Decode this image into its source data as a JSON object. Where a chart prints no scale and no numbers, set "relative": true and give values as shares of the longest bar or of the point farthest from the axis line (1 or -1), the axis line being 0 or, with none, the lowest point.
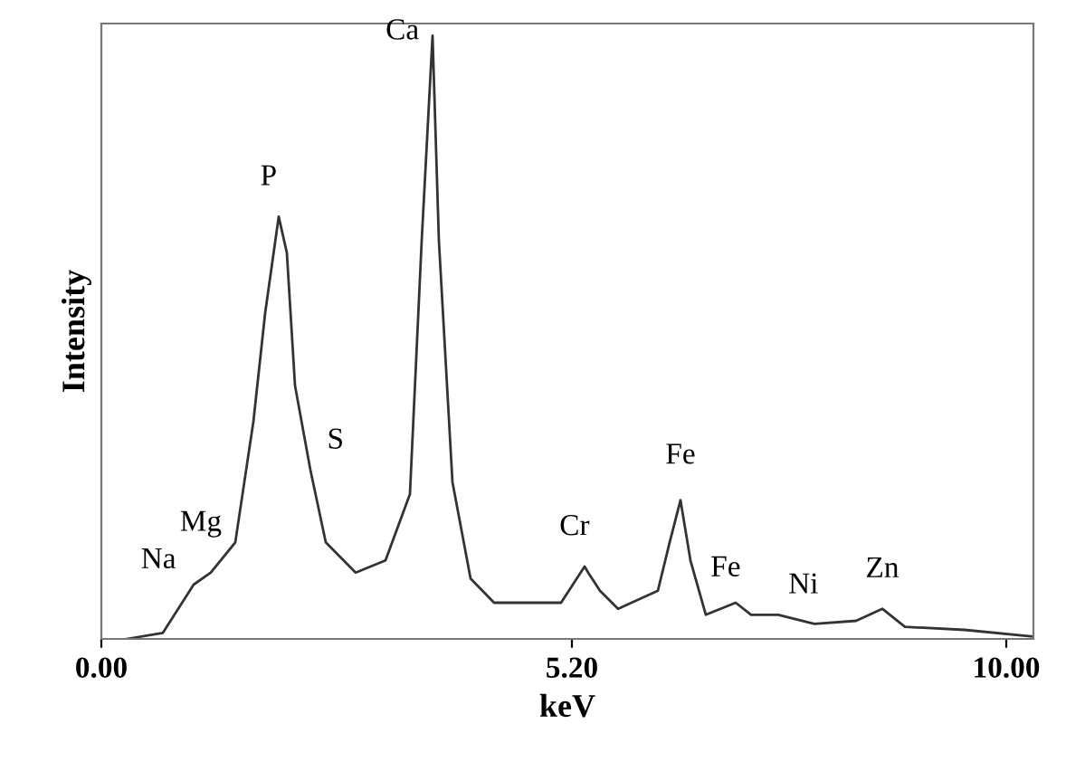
{
  "chart_data": {
    "type": "line",
    "xlabel": "keV",
    "ylabel": "Intensity",
    "relative": true,
    "xlim": [
      0,
      10.3
    ],
    "xticks": [
      {
        "value": 0,
        "label": "0.00"
      },
      {
        "value": 5.2,
        "label": "5.20"
      },
      {
        "value": 10,
        "label": "10.00"
      }
    ],
    "series": [
      {
        "color": "#333333",
        "x": [
          0.28,
          0.68,
          1.02,
          1.21,
          1.48,
          1.68,
          1.81,
          1.96,
          2.05,
          2.14,
          2.31,
          2.48,
          2.81,
          3.14,
          3.41,
          3.54,
          3.66,
          3.73,
          3.88,
          4.08,
          4.34,
          5.08,
          5.34,
          5.38,
          5.51,
          5.71,
          6.15,
          6.28,
          6.4,
          6.51,
          6.68,
          7.01,
          7.18,
          7.48,
          7.88,
          8.34,
          8.63,
          8.88,
          9.54,
          10.28
        ],
        "values": [
          0,
          0.01,
          0.09,
          0.11,
          0.16,
          0.36,
          0.54,
          0.7,
          0.64,
          0.42,
          0.28,
          0.16,
          0.11,
          0.13,
          0.24,
          0.66,
          1.0,
          0.66,
          0.26,
          0.1,
          0.06,
          0.06,
          0.12,
          0.11,
          0.08,
          0.05,
          0.08,
          0.16,
          0.23,
          0.13,
          0.04,
          0.06,
          0.04,
          0.04,
          0.025,
          0.03,
          0.05,
          0.02,
          0.015,
          0.004
        ]
      }
    ],
    "annotations": [
      {
        "text": "Na",
        "x": 1.02,
        "y": 0.09
      },
      {
        "text": "Mg",
        "x": 1.21,
        "y": 0.11
      },
      {
        "text": "P",
        "x": 1.96,
        "y": 0.7
      },
      {
        "text": "S",
        "x": 2.31,
        "y": 0.28
      },
      {
        "text": "Ca",
        "x": 3.66,
        "y": 1.0
      },
      {
        "text": "Cr",
        "x": 5.34,
        "y": 0.12
      },
      {
        "text": "Fe",
        "x": 6.4,
        "y": 0.23
      },
      {
        "text": "Fe",
        "x": 7.01,
        "y": 0.06
      },
      {
        "text": "Ni",
        "x": 7.48,
        "y": 0.04
      },
      {
        "text": "Zn",
        "x": 8.63,
        "y": 0.05
      }
    ],
    "grid": false,
    "legend": false
  }
}
